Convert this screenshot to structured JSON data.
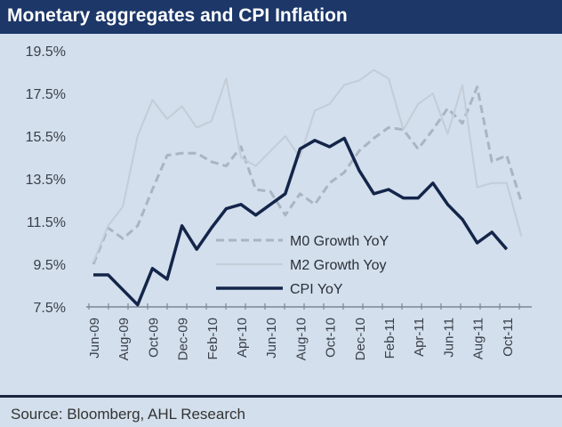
{
  "chart_data": {
    "type": "line",
    "title": "Monetary aggregates and CPI Inflation",
    "source": "Source: Bloomberg, AHL Research",
    "x": [
      "Jun-09",
      "Jul-09",
      "Aug-09",
      "Sep-09",
      "Oct-09",
      "Nov-09",
      "Dec-09",
      "Jan-10",
      "Feb-10",
      "Mar-10",
      "Apr-10",
      "May-10",
      "Jun-10",
      "Jul-10",
      "Aug-10",
      "Sep-10",
      "Oct-10",
      "Nov-10",
      "Dec-10",
      "Jan-11",
      "Feb-11",
      "Mar-11",
      "Apr-11",
      "May-11",
      "Jun-11",
      "Jul-11",
      "Aug-11",
      "Sep-11",
      "Oct-11",
      "Nov-11"
    ],
    "x_tick_labels": [
      "Jun-09",
      "Aug-09",
      "Oct-09",
      "Dec-09",
      "Feb-10",
      "Apr-10",
      "Jun-10",
      "Aug-10",
      "Oct-10",
      "Dec-10",
      "Feb-11",
      "Apr-11",
      "Jun-11",
      "Aug-11",
      "Oct-11"
    ],
    "y_tick_labels": [
      "19.5%",
      "17.5%",
      "15.5%",
      "13.5%",
      "11.5%",
      "9.5%",
      "7.5%"
    ],
    "ylim": [
      7.5,
      19.5
    ],
    "yunit": "%",
    "grid": false,
    "legend_position": "bottom-center",
    "series": [
      {
        "name": "M0 Growth YoY",
        "style": "dashed",
        "color": "#a9b4c4",
        "values": [
          9.5,
          11.2,
          10.7,
          11.3,
          13.0,
          14.6,
          14.7,
          14.7,
          14.3,
          14.1,
          15.0,
          13.0,
          12.9,
          11.8,
          12.8,
          12.3,
          13.3,
          13.8,
          14.8,
          15.4,
          15.9,
          15.8,
          14.9,
          15.8,
          16.8,
          16.1,
          17.8,
          14.3,
          14.6,
          12.4
        ]
      },
      {
        "name": "M2 Growth Yoy",
        "style": "solid-light",
        "color": "#c4ccd8",
        "values": [
          9.6,
          11.3,
          12.2,
          15.5,
          17.2,
          16.3,
          16.9,
          15.9,
          16.2,
          18.2,
          14.5,
          14.1,
          14.8,
          15.5,
          14.5,
          16.7,
          17.0,
          17.9,
          18.1,
          18.6,
          18.2,
          15.8,
          17.0,
          17.5,
          15.6,
          17.9,
          13.1,
          13.3,
          13.3,
          10.8
        ]
      },
      {
        "name": "CPI YoY",
        "style": "solid",
        "color": "#14254a",
        "values": [
          9.0,
          9.0,
          8.3,
          7.6,
          9.3,
          8.8,
          11.3,
          10.2,
          11.2,
          12.1,
          12.3,
          11.8,
          12.3,
          12.8,
          14.9,
          15.3,
          15.0,
          15.4,
          13.9,
          12.8,
          13.0,
          12.6,
          12.6,
          13.3,
          12.3,
          11.6,
          10.5,
          11.0,
          10.2,
          null
        ]
      }
    ]
  }
}
